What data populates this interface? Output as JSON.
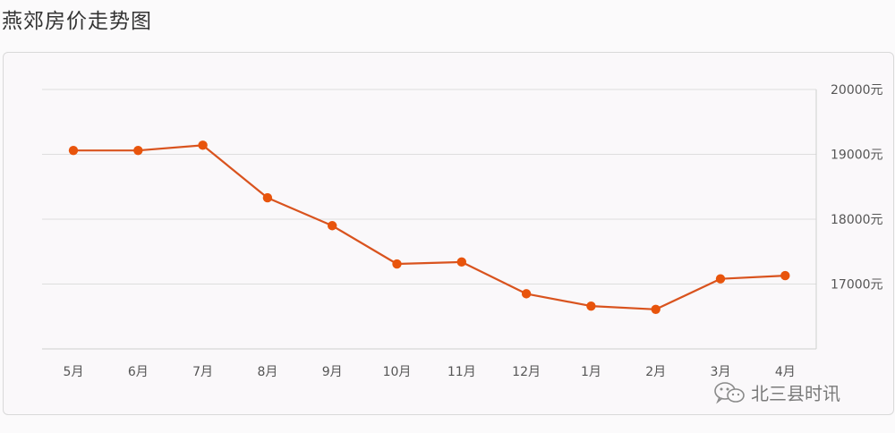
{
  "page_title": "燕郊房价走势图",
  "watermark": {
    "icon": "wechat-icon",
    "text": "北三县时讯"
  },
  "colors": {
    "line": "#d9531e",
    "point": "#e8540c",
    "grid": "#dedede",
    "axis": "#cfcfcf"
  },
  "chart_data": {
    "type": "line",
    "title": "燕郊房价走势图",
    "categories": [
      "5月",
      "6月",
      "7月",
      "8月",
      "9月",
      "10月",
      "11月",
      "12月",
      "1月",
      "2月",
      "3月",
      "4月"
    ],
    "series": [
      {
        "values": [
          19060,
          19060,
          19140,
          18330,
          17900,
          17310,
          17340,
          16850,
          16660,
          16610,
          17080,
          17130
        ]
      }
    ],
    "y_ticks": [
      17000,
      18000,
      19000,
      20000
    ],
    "y_tick_labels": [
      "17000元",
      "18000元",
      "19000元",
      "20000元"
    ],
    "ylim": [
      16000,
      20000
    ],
    "y_axis_position": "right",
    "grid": true,
    "legend": "none"
  }
}
